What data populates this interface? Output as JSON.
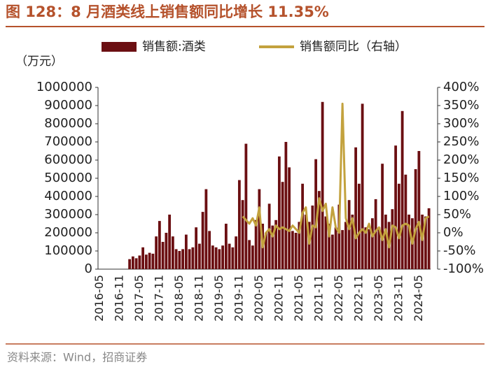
{
  "chart_data": {
    "type": "bar_line",
    "title": "图 128：8 月酒类线上销售额同比增长 11.35%",
    "y_unit": "（万元）",
    "source": "资料来源：Wind，招商证券",
    "categories": [
      "2016-05",
      null,
      null,
      null,
      null,
      null,
      "2016-11",
      null,
      null,
      null,
      null,
      null,
      "2017-05",
      null,
      null,
      null,
      null,
      null,
      "2017-11",
      null,
      null,
      null,
      null,
      null,
      "2018-05",
      null,
      null,
      null,
      null,
      null,
      "2018-11",
      null,
      null,
      null,
      null,
      null,
      "2019-05",
      null,
      null,
      null,
      null,
      null,
      "2019-11",
      null,
      null,
      null,
      null,
      null,
      "2020-05",
      null,
      null,
      null,
      null,
      null,
      "2020-11",
      null,
      null,
      null,
      null,
      null,
      "2021-05",
      null,
      null,
      null,
      null,
      null,
      "2021-11",
      null,
      null,
      null,
      null,
      null,
      "2022-05",
      null,
      null,
      null,
      null,
      null,
      "2022-11",
      null,
      null,
      null,
      null,
      null,
      "2023-05",
      null,
      null,
      null,
      null,
      null,
      "2023-11",
      null,
      null,
      null,
      null,
      null,
      "2024-05",
      null,
      null,
      null
    ],
    "series": [
      {
        "name": "销售额:酒类",
        "type": "bar",
        "color": "#6b0f12",
        "values": [
          null,
          null,
          null,
          null,
          null,
          null,
          null,
          null,
          null,
          55000,
          70000,
          60000,
          75000,
          120000,
          80000,
          90000,
          85000,
          180000,
          265000,
          150000,
          200000,
          300000,
          180000,
          110000,
          100000,
          110000,
          190000,
          110000,
          120000,
          230000,
          140000,
          315000,
          440000,
          210000,
          130000,
          120000,
          110000,
          130000,
          250000,
          140000,
          120000,
          180000,
          490000,
          380000,
          690000,
          160000,
          130000,
          270000,
          440000,
          250000,
          200000,
          360000,
          240000,
          270000,
          620000,
          480000,
          700000,
          560000,
          210000,
          200000,
          260000,
          470000,
          300000,
          260000,
          350000,
          605000,
          430000,
          920000,
          290000,
          250000,
          190000,
          230000,
          355000,
          215000,
          260000,
          380000,
          300000,
          670000,
          470000,
          910000,
          230000,
          220000,
          280000,
          385000,
          230000,
          580000,
          300000,
          260000,
          330000,
          680000,
          470000,
          870000,
          520000,
          300000,
          280000,
          550000,
          650000,
          300000,
          290000,
          335000
        ]
      },
      {
        "name": "销售额同比（右轴）",
        "type": "line",
        "axis": "y2",
        "color": "#c3a23e",
        "values": [
          null,
          null,
          null,
          null,
          null,
          null,
          null,
          null,
          null,
          null,
          null,
          null,
          null,
          null,
          null,
          null,
          null,
          null,
          null,
          null,
          null,
          null,
          null,
          null,
          null,
          null,
          null,
          null,
          null,
          null,
          null,
          null,
          null,
          null,
          null,
          null,
          null,
          null,
          null,
          null,
          null,
          null,
          null,
          45,
          35,
          25,
          40,
          20,
          70,
          -40,
          0,
          10,
          -10,
          20,
          10,
          15,
          10,
          5,
          20,
          10,
          0,
          55,
          70,
          -30,
          20,
          15,
          95,
          60,
          80,
          -10,
          70,
          15,
          0,
          355,
          40,
          10,
          40,
          -15,
          0,
          10,
          0,
          25,
          -10,
          5,
          15,
          -20,
          10,
          -40,
          20,
          15,
          -15,
          20,
          25,
          20,
          -30,
          10,
          30,
          -20,
          40,
          45
        ]
      }
    ],
    "ylim": [
      0,
      1000000
    ],
    "yticks": [
      0,
      100000,
      200000,
      300000,
      400000,
      500000,
      600000,
      700000,
      800000,
      900000,
      1000000
    ],
    "y2lim": [
      -100,
      400
    ],
    "y2ticks": [
      {
        "value": -100,
        "label": "-100%"
      },
      {
        "value": -50,
        "label": "-50%"
      },
      {
        "value": 0,
        "label": "0%"
      },
      {
        "value": 50,
        "label": "50%"
      },
      {
        "value": 100,
        "label": "100%"
      },
      {
        "value": 150,
        "label": "150%"
      },
      {
        "value": 200,
        "label": "200%"
      },
      {
        "value": 250,
        "label": "250%"
      },
      {
        "value": 300,
        "label": "300%"
      },
      {
        "value": 350,
        "label": "350%"
      },
      {
        "value": 400,
        "label": "400%"
      }
    ],
    "grid": false,
    "legend": "top"
  }
}
